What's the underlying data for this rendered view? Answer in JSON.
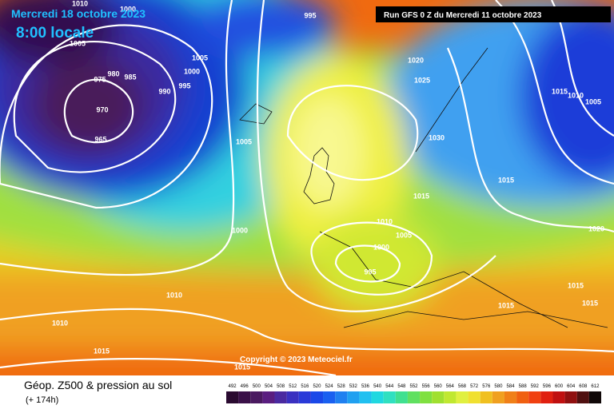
{
  "map": {
    "date_title": "Mercredi 18 octobre 2023",
    "local_time": "8:00 locale",
    "run_info": "Run GFS 0 Z du Mercredi 11 octobre 2023",
    "copyright": "Copyright © 2023 Meteociel.fr",
    "isobar_labels": [
      "995",
      "1010",
      "1005",
      "1000",
      "975",
      "980",
      "985",
      "970",
      "965",
      "990",
      "995",
      "1000",
      "1005",
      "1005",
      "1000",
      "1020",
      "1025",
      "1030",
      "1015",
      "1010",
      "1005",
      "1000",
      "995",
      "1010",
      "1010",
      "1015",
      "1015",
      "1015",
      "1010",
      "1005",
      "1015",
      "1020",
      "1015",
      "1015",
      "1015"
    ]
  },
  "legend": {
    "title": "Géop. Z500 & pression au sol",
    "lead_time": "(+ 174h)",
    "scale": [
      492,
      496,
      500,
      504,
      508,
      512,
      516,
      520,
      524,
      528,
      532,
      536,
      540,
      544,
      548,
      552,
      556,
      560,
      564,
      568,
      572,
      576,
      580,
      584,
      588,
      592,
      596,
      600,
      604,
      608,
      612
    ]
  }
}
